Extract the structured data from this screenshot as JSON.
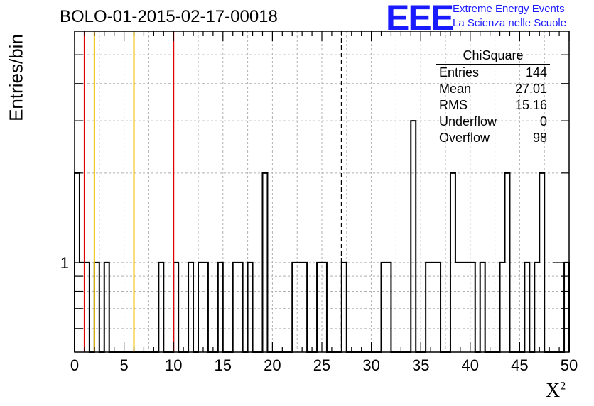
{
  "title": "BOLO-01-2015-02-17-00018",
  "logo": {
    "mark": "EEE",
    "line1": "Extreme Energy Events",
    "line2": "La Scienza nelle Scuole",
    "color": "#1a1aff"
  },
  "stats": {
    "title": "ChiSquare",
    "rows": [
      {
        "label": "Entries",
        "value": "144"
      },
      {
        "label": "Mean",
        "value": "27.01"
      },
      {
        "label": "RMS",
        "value": "15.16"
      },
      {
        "label": "Underflow",
        "value": "0"
      },
      {
        "label": "Overflow",
        "value": "98"
      }
    ]
  },
  "chart_data": {
    "type": "bar",
    "subtype": "histogram",
    "xlabel": "X",
    "xlabel_sup": "2",
    "ylabel": "Entries/bin",
    "xlim": [
      0,
      50
    ],
    "ylim": [
      0.5,
      6
    ],
    "yscale": "log",
    "bin_width": 0.5,
    "xticks": [
      0,
      5,
      10,
      15,
      20,
      25,
      30,
      35,
      40,
      45,
      50
    ],
    "yticks_labeled": [
      1
    ],
    "grid": true,
    "bins": [
      {
        "x": 0.0,
        "count": 2
      },
      {
        "x": 0.5,
        "count": 1
      },
      {
        "x": 1.0,
        "count": 1
      },
      {
        "x": 2.0,
        "count": 1
      },
      {
        "x": 3.0,
        "count": 1
      },
      {
        "x": 8.5,
        "count": 1
      },
      {
        "x": 10.0,
        "count": 1
      },
      {
        "x": 11.5,
        "count": 1
      },
      {
        "x": 12.5,
        "count": 1
      },
      {
        "x": 13.0,
        "count": 1
      },
      {
        "x": 14.5,
        "count": 1
      },
      {
        "x": 16.0,
        "count": 1
      },
      {
        "x": 16.5,
        "count": 1
      },
      {
        "x": 17.5,
        "count": 1
      },
      {
        "x": 19.0,
        "count": 2
      },
      {
        "x": 22.0,
        "count": 1
      },
      {
        "x": 22.5,
        "count": 1
      },
      {
        "x": 23.0,
        "count": 1
      },
      {
        "x": 24.5,
        "count": 1
      },
      {
        "x": 25.0,
        "count": 1
      },
      {
        "x": 27.0,
        "count": 1
      },
      {
        "x": 31.0,
        "count": 1
      },
      {
        "x": 31.5,
        "count": 1
      },
      {
        "x": 34.0,
        "count": 3
      },
      {
        "x": 35.5,
        "count": 1
      },
      {
        "x": 36.0,
        "count": 1
      },
      {
        "x": 36.5,
        "count": 1
      },
      {
        "x": 38.0,
        "count": 2
      },
      {
        "x": 38.5,
        "count": 1
      },
      {
        "x": 39.0,
        "count": 1
      },
      {
        "x": 39.5,
        "count": 1
      },
      {
        "x": 40.0,
        "count": 1
      },
      {
        "x": 41.0,
        "count": 1
      },
      {
        "x": 43.0,
        "count": 1
      },
      {
        "x": 43.5,
        "count": 2
      },
      {
        "x": 45.5,
        "count": 1
      },
      {
        "x": 46.5,
        "count": 1
      },
      {
        "x": 47.0,
        "count": 2
      },
      {
        "x": 49.5,
        "count": 1
      }
    ],
    "reference_lines": [
      {
        "x": 1.0,
        "color": "#e00000",
        "style": "solid"
      },
      {
        "x": 2.0,
        "color": "#f0c000",
        "style": "solid"
      },
      {
        "x": 6.0,
        "color": "#f0c000",
        "style": "solid"
      },
      {
        "x": 10.0,
        "color": "#e00000",
        "style": "solid"
      },
      {
        "x": 27.0,
        "color": "#000000",
        "style": "dashed"
      }
    ]
  }
}
